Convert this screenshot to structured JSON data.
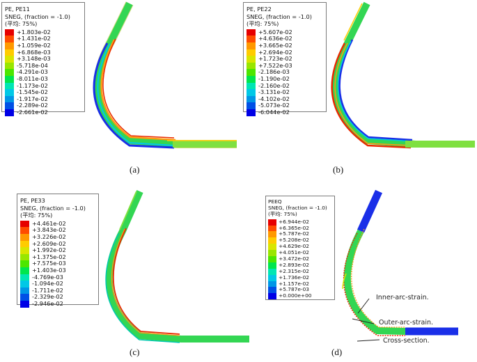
{
  "panels": {
    "a": {
      "legend_title": [
        "PE, PE11",
        "SNEG, (fraction = -1.0)",
        "(平均: 75%)"
      ],
      "legend_values": [
        "+1.803e-02",
        "+1.431e-02",
        "+1.059e-02",
        "+6.868e-03",
        "+3.148e-03",
        "-5.718e-04",
        "-4.291e-03",
        "-8.011e-03",
        "-1.173e-02",
        "-1.545e-02",
        "-1.917e-02",
        "-2.289e-02",
        "-2.661e-02"
      ],
      "caption": "(a)"
    },
    "b": {
      "legend_title": [
        "PE, PE22",
        "SNEG, (fraction = -1.0)",
        "(平均: 75%)"
      ],
      "legend_values": [
        "+5.607e-02",
        "+4.636e-02",
        "+3.665e-02",
        "+2.694e-02",
        "+1.723e-02",
        "+7.522e-03",
        "-2.186e-03",
        "-1.190e-02",
        "-2.160e-02",
        "-3.131e-02",
        "-4.102e-02",
        "-5.073e-02",
        "-6.044e-02"
      ],
      "caption": "(b)"
    },
    "c": {
      "legend_title": [
        "PE, PE33",
        "SNEG, (fraction = -1.0)",
        "(平均: 75%)"
      ],
      "legend_values": [
        "+4.461e-02",
        "+3.843e-02",
        "+3.226e-02",
        "+2.609e-02",
        "+1.992e-02",
        "+1.375e-02",
        "+7.575e-03",
        "+1.403e-03",
        "-4.769e-03",
        "-1.094e-02",
        "-1.711e-02",
        "-2.329e-02",
        "-2.946e-02"
      ],
      "caption": "(c)"
    },
    "d": {
      "legend_title": [
        "PEEQ",
        "SNEG, (fraction = -1.0)",
        "(平均: 75%)"
      ],
      "legend_values": [
        "+6.944e-02",
        "+6.365e-02",
        "+5.787e-02",
        "+5.208e-02",
        "+4.629e-02",
        "+4.051e-02",
        "+3.472e-02",
        "+2.893e-02",
        "+2.315e-02",
        "+1.736e-02",
        "+1.157e-02",
        "+5.787e-03",
        "+0.000e+00"
      ],
      "caption": "(d)",
      "annotations": [
        "Inner-arc-strain.",
        "Outer-arc-strain.",
        "Cross-section."
      ]
    }
  },
  "colors": {
    "legend_scale": [
      "#e60000",
      "#ff4c00",
      "#ff9900",
      "#ffcc00",
      "#d9e600",
      "#99e600",
      "#4ce600",
      "#00e64d",
      "#00e6b3",
      "#00c8e6",
      "#0096e6",
      "#0050e6",
      "#0000e6"
    ],
    "pipe_green": "#33d653",
    "pipe_light_green": "#5ee05a",
    "pipe_red": "#e82a00",
    "pipe_blue": "#1a2fe8",
    "pipe_orange": "#ff9a10"
  }
}
